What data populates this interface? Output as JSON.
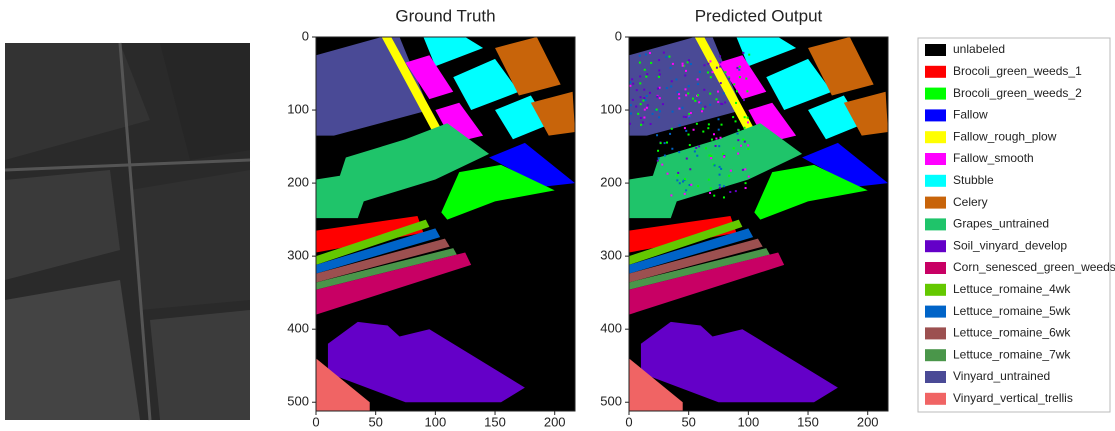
{
  "chart_data": [
    {
      "type": "image",
      "title": "Ground Truth",
      "xlim": [
        0,
        217
      ],
      "ylim": [
        512,
        0
      ],
      "xticks": [
        0,
        50,
        100,
        150,
        200
      ],
      "yticks": [
        0,
        100,
        200,
        300,
        400,
        500
      ]
    },
    {
      "type": "image",
      "title": "Predicted Output",
      "xlim": [
        0,
        217
      ],
      "ylim": [
        512,
        0
      ],
      "xticks": [
        0,
        50,
        100,
        150,
        200
      ],
      "yticks": [
        0,
        100,
        200,
        300,
        400,
        500
      ]
    }
  ],
  "legend": {
    "entries": [
      {
        "name": "unlabeled",
        "color": "#000000"
      },
      {
        "name": "Brocoli_green_weeds_1",
        "color": "#ff0000"
      },
      {
        "name": "Brocoli_green_weeds_2",
        "color": "#00ff00"
      },
      {
        "name": "Fallow",
        "color": "#0000ff"
      },
      {
        "name": "Fallow_rough_plow",
        "color": "#ffff00"
      },
      {
        "name": "Fallow_smooth",
        "color": "#ff00ff"
      },
      {
        "name": "Stubble",
        "color": "#00ffff"
      },
      {
        "name": "Celery",
        "color": "#c8640a"
      },
      {
        "name": "Grapes_untrained",
        "color": "#1fc46a"
      },
      {
        "name": "Soil_vinyard_develop",
        "color": "#6400c8"
      },
      {
        "name": "Corn_senesced_green_weeds",
        "color": "#c80064"
      },
      {
        "name": "Lettuce_romaine_4wk",
        "color": "#64c800"
      },
      {
        "name": "Lettuce_romaine_5wk",
        "color": "#0064c8"
      },
      {
        "name": "Lettuce_romaine_6wk",
        "color": "#9c5050"
      },
      {
        "name": "Lettuce_romaine_7wk",
        "color": "#4a964a"
      },
      {
        "name": "Vinyard_untrained",
        "color": "#4a4a96"
      },
      {
        "name": "Vinyard_vertical_trellis",
        "color": "#f06464"
      }
    ]
  }
}
